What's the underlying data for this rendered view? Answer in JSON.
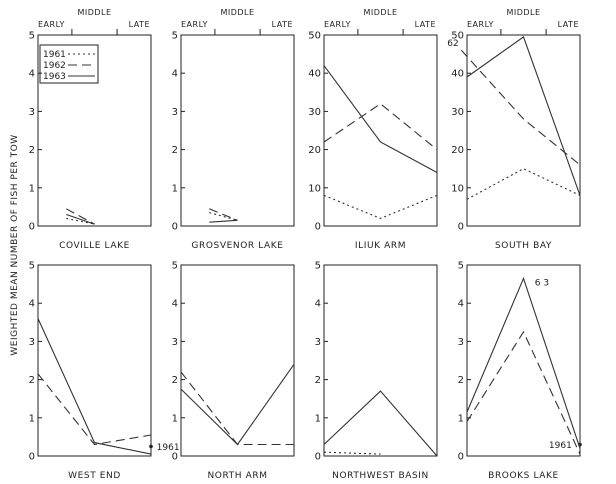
{
  "figure": {
    "ylabel": "WEIGHTED MEAN NUMBER OF FISH PER TOW",
    "season_labels": {
      "early": "EARLY",
      "middle": "MIDDLE",
      "late": "LATE"
    },
    "legend": [
      "1961",
      "1962",
      "1963"
    ]
  },
  "chart_data": [
    {
      "type": "line",
      "title": "COVILLE LAKE",
      "x": [
        "Early",
        "Middle",
        "Late"
      ],
      "ylim": [
        0,
        5
      ],
      "yticks": [
        0,
        1,
        2,
        3,
        4,
        5
      ],
      "series": [
        {
          "name": "1961",
          "points": [
            [
              0.5,
              0.2
            ],
            [
              1.0,
              0.05
            ]
          ]
        },
        {
          "name": "1962",
          "points": [
            [
              0.5,
              0.45
            ],
            [
              1.0,
              0.05
            ]
          ]
        },
        {
          "name": "1963",
          "points": [
            [
              0.5,
              0.3
            ],
            [
              1.0,
              0.05
            ]
          ]
        }
      ],
      "annotations": []
    },
    {
      "type": "line",
      "title": "GROSVENOR LAKE",
      "x": [
        "Early",
        "Middle",
        "Late"
      ],
      "ylim": [
        0,
        5
      ],
      "yticks": [
        0,
        1,
        2,
        3,
        4,
        5
      ],
      "series": [
        {
          "name": "1961",
          "points": [
            [
              0.5,
              0.35
            ],
            [
              1.0,
              0.15
            ]
          ]
        },
        {
          "name": "1962",
          "points": [
            [
              0.5,
              0.45
            ],
            [
              1.0,
              0.15
            ]
          ]
        },
        {
          "name": "1963",
          "points": [
            [
              0.5,
              0.1
            ],
            [
              1.0,
              0.15
            ]
          ]
        }
      ],
      "annotations": []
    },
    {
      "type": "line",
      "title": "ILIUK ARM",
      "x": [
        "Early",
        "Middle",
        "Late"
      ],
      "ylim": [
        0,
        50
      ],
      "yticks": [
        0,
        10,
        20,
        30,
        40,
        50
      ],
      "series": [
        {
          "name": "1961",
          "points": [
            [
              0.0,
              8
            ],
            [
              1.0,
              2
            ],
            [
              2.0,
              8
            ]
          ]
        },
        {
          "name": "1962",
          "points": [
            [
              0.0,
              22
            ],
            [
              1.0,
              32
            ],
            [
              2.0,
              20
            ]
          ]
        },
        {
          "name": "1963",
          "points": [
            [
              0.0,
              42
            ],
            [
              1.0,
              22
            ],
            [
              2.0,
              14
            ]
          ]
        }
      ],
      "annotations": []
    },
    {
      "type": "line",
      "title": "SOUTH BAY",
      "x": [
        "Early",
        "Middle",
        "Late"
      ],
      "ylim": [
        0,
        50
      ],
      "yticks": [
        0,
        10,
        20,
        30,
        40,
        50
      ],
      "series": [
        {
          "name": "1961",
          "points": [
            [
              0.0,
              7
            ],
            [
              1.0,
              15
            ],
            [
              2.0,
              8
            ]
          ]
        },
        {
          "name": "1962",
          "points": [
            [
              -0.1,
              46
            ],
            [
              1.0,
              28
            ],
            [
              2.0,
              16
            ]
          ]
        },
        {
          "name": "1963",
          "points": [
            [
              0.0,
              39
            ],
            [
              1.0,
              49.5
            ],
            [
              2.0,
              8
            ]
          ]
        }
      ],
      "annotations": [
        {
          "text": "62",
          "x": -0.35,
          "y": 48
        }
      ]
    },
    {
      "type": "line",
      "title": "WEST END",
      "x": [
        "Early",
        "Middle",
        "Late"
      ],
      "ylim": [
        0,
        5
      ],
      "yticks": [
        0,
        1,
        2,
        3,
        4,
        5
      ],
      "series": [
        {
          "name": "1961",
          "points": [
            [
              2.0,
              0.25
            ]
          ]
        },
        {
          "name": "1962",
          "points": [
            [
              0.0,
              2.15
            ],
            [
              1.0,
              0.3
            ],
            [
              2.0,
              0.55
            ]
          ]
        },
        {
          "name": "1963",
          "points": [
            [
              0.0,
              3.6
            ],
            [
              1.0,
              0.35
            ],
            [
              2.0,
              0.05
            ]
          ]
        }
      ],
      "annotations": [
        {
          "text": "1961",
          "x": 2.1,
          "y": 0.25
        }
      ]
    },
    {
      "type": "line",
      "title": "NORTH ARM",
      "x": [
        "Early",
        "Middle",
        "Late"
      ],
      "ylim": [
        0,
        5
      ],
      "yticks": [
        0,
        1,
        2,
        3,
        4,
        5
      ],
      "series": [
        {
          "name": "1962",
          "points": [
            [
              0.0,
              2.2
            ],
            [
              1.0,
              0.3
            ],
            [
              2.0,
              0.3
            ]
          ]
        },
        {
          "name": "1963",
          "points": [
            [
              0.0,
              1.75
            ],
            [
              1.0,
              0.3
            ],
            [
              2.0,
              2.4
            ]
          ]
        }
      ],
      "annotations": []
    },
    {
      "type": "line",
      "title": "NORTHWEST BASIN",
      "x": [
        "Early",
        "Middle",
        "Late"
      ],
      "ylim": [
        0,
        5
      ],
      "yticks": [
        0,
        1,
        2,
        3,
        4,
        5
      ],
      "series": [
        {
          "name": "1961",
          "points": [
            [
              0.0,
              0.1
            ],
            [
              1.0,
              0.05
            ]
          ]
        },
        {
          "name": "1963",
          "points": [
            [
              0.0,
              0.3
            ],
            [
              1.0,
              1.7
            ],
            [
              2.0,
              0.0
            ]
          ]
        }
      ],
      "annotations": []
    },
    {
      "type": "line",
      "title": "BROOKS LAKE",
      "x": [
        "Early",
        "Middle",
        "Late"
      ],
      "ylim": [
        0,
        5
      ],
      "yticks": [
        0,
        1,
        2,
        3,
        4,
        5
      ],
      "series": [
        {
          "name": "1961",
          "points": [
            [
              2.0,
              0.3
            ]
          ]
        },
        {
          "name": "1962",
          "points": [
            [
              0.0,
              0.9
            ],
            [
              1.0,
              3.25
            ],
            [
              2.0,
              0.05
            ]
          ]
        },
        {
          "name": "1963",
          "points": [
            [
              0.0,
              1.15
            ],
            [
              1.0,
              4.65
            ],
            [
              2.0,
              0.2
            ]
          ]
        }
      ],
      "annotations": [
        {
          "text": "6 3",
          "x": 1.2,
          "y": 4.55
        },
        {
          "text": "1961",
          "x": 1.45,
          "y": 0.3
        }
      ]
    }
  ]
}
